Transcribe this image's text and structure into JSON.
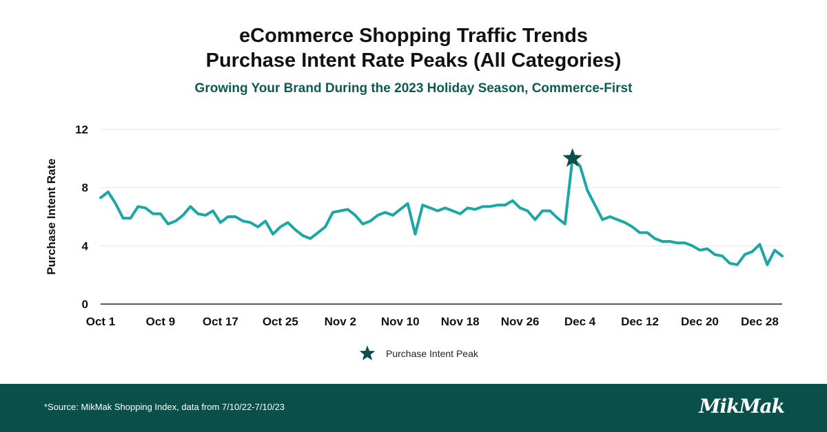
{
  "colors": {
    "line": "#1aa7a5",
    "star": "#0d4f4a",
    "footer_bg": "#0b4f4a",
    "subtitle": "#0d5a53",
    "grid": "#e6e6e6"
  },
  "header": {
    "title_line1": "eCommerce Shopping Traffic Trends",
    "title_line2": "Purchase Intent Rate Peaks (All Categories)",
    "subtitle": "Growing Your Brand During the 2023 Holiday Season, Commerce-First"
  },
  "footer": {
    "source": "*Source: MikMak Shopping Index, data from 7/10/22-7/10/23",
    "logo_text": "MikMak"
  },
  "chart_data": {
    "type": "line",
    "title": "eCommerce Shopping Traffic Trends",
    "subtitle": "Purchase Intent Rate Peaks (All Categories)",
    "ylabel": "Purchase Intent Rate",
    "xlabel": "",
    "ylim": [
      0,
      12
    ],
    "yticks": [
      0,
      4,
      8,
      12
    ],
    "grid": true,
    "x_ticks": [
      "Oct 1",
      "Oct 9",
      "Oct 17",
      "Oct 25",
      "Nov 2",
      "Nov 10",
      "Nov 18",
      "Nov 26",
      "Dec 4",
      "Dec 12",
      "Dec 20",
      "Dec 28"
    ],
    "x": [
      "Oct 1",
      "Oct 2",
      "Oct 3",
      "Oct 4",
      "Oct 5",
      "Oct 6",
      "Oct 7",
      "Oct 8",
      "Oct 9",
      "Oct 10",
      "Oct 11",
      "Oct 12",
      "Oct 13",
      "Oct 14",
      "Oct 15",
      "Oct 16",
      "Oct 17",
      "Oct 18",
      "Oct 19",
      "Oct 20",
      "Oct 21",
      "Oct 22",
      "Oct 23",
      "Oct 24",
      "Oct 25",
      "Oct 26",
      "Oct 27",
      "Oct 28",
      "Oct 29",
      "Oct 30",
      "Oct 31",
      "Nov 1",
      "Nov 2",
      "Nov 3",
      "Nov 4",
      "Nov 5",
      "Nov 6",
      "Nov 7",
      "Nov 8",
      "Nov 9",
      "Nov 10",
      "Nov 11",
      "Nov 12",
      "Nov 13",
      "Nov 14",
      "Nov 15",
      "Nov 16",
      "Nov 17",
      "Nov 18",
      "Nov 19",
      "Nov 20",
      "Nov 21",
      "Nov 22",
      "Nov 23",
      "Nov 24",
      "Nov 25",
      "Nov 26",
      "Nov 27",
      "Nov 28",
      "Nov 29",
      "Nov 30",
      "Dec 1",
      "Dec 2",
      "Dec 3",
      "Dec 4",
      "Dec 5",
      "Dec 6",
      "Dec 7",
      "Dec 8",
      "Dec 9",
      "Dec 10",
      "Dec 11",
      "Dec 12",
      "Dec 13",
      "Dec 14",
      "Dec 15",
      "Dec 16",
      "Dec 17",
      "Dec 18",
      "Dec 19",
      "Dec 20",
      "Dec 21",
      "Dec 22",
      "Dec 23",
      "Dec 24",
      "Dec 25",
      "Dec 26",
      "Dec 27",
      "Dec 28",
      "Dec 29",
      "Dec 30",
      "Dec 31"
    ],
    "series": [
      {
        "values": [
          7.3,
          7.7,
          6.9,
          5.9,
          5.9,
          6.7,
          6.6,
          6.2,
          6.2,
          5.5,
          5.7,
          6.1,
          6.7,
          6.2,
          6.1,
          6.4,
          5.6,
          6.0,
          6.0,
          5.7,
          5.6,
          5.3,
          5.7,
          4.8,
          5.3,
          5.6,
          5.1,
          4.7,
          4.5,
          4.9,
          5.3,
          6.3,
          6.4,
          6.5,
          6.1,
          5.5,
          5.7,
          6.1,
          6.3,
          6.1,
          6.5,
          6.9,
          4.8,
          6.8,
          6.6,
          6.4,
          6.6,
          6.4,
          6.2,
          6.6,
          6.5,
          6.7,
          6.7,
          6.8,
          6.8,
          7.1,
          6.6,
          6.4,
          5.8,
          6.4,
          6.4,
          5.9,
          5.5,
          10.0,
          9.5,
          7.8,
          6.8,
          5.8,
          6.0,
          5.8,
          5.6,
          5.3,
          4.9,
          4.9,
          4.5,
          4.3,
          4.3,
          4.2,
          4.2,
          4.0,
          3.7,
          3.8,
          3.4,
          3.3,
          2.8,
          2.7,
          3.4,
          3.6,
          4.1,
          2.7,
          3.7,
          3.3
        ]
      }
    ],
    "peak": {
      "x": "Dec 3",
      "value": 10.0
    },
    "legend": {
      "label": "Purchase Intent Peak",
      "position": "bottom-center"
    }
  }
}
